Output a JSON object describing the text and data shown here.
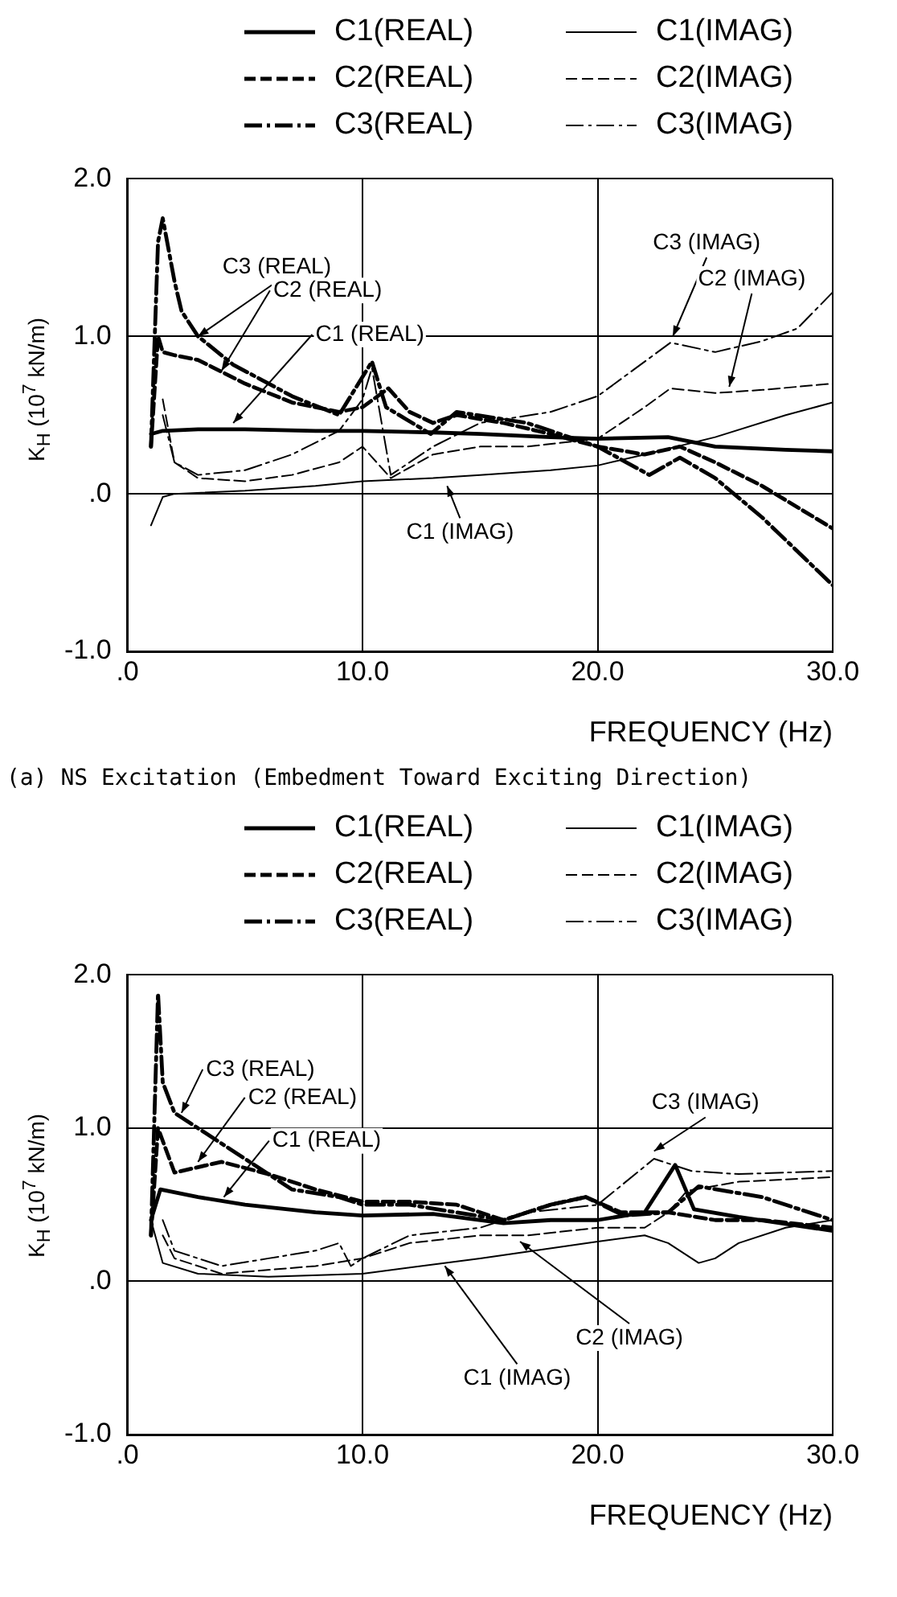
{
  "chart_data": [
    {
      "type": "line",
      "xlabel": "FREQUENCY (Hz)",
      "ylabel": "K$_{H}$ (10$^{7}$ kN/m)",
      "xlim": [
        0,
        30
      ],
      "ylim": [
        -1,
        2
      ],
      "xticks": [
        {
          "value": 0,
          "label": ".0"
        },
        {
          "value": 10,
          "label": "10.0"
        },
        {
          "value": 20,
          "label": "20.0"
        },
        {
          "value": 30,
          "label": "30.0"
        }
      ],
      "yticks": [
        {
          "value": -1,
          "label": "-1.0"
        },
        {
          "value": 0,
          "label": ".0"
        },
        {
          "value": 1,
          "label": "1.0"
        },
        {
          "value": 2,
          "label": "2.0"
        }
      ],
      "grid": true,
      "legend": "top",
      "marker": "none",
      "series": [
        {
          "name": "C1(REAL)",
          "color": "#000000",
          "line_style": "solid",
          "x": [
            1,
            1.5,
            3,
            5,
            8,
            10,
            13,
            15,
            18,
            20,
            23,
            25,
            28,
            30
          ],
          "values": [
            0.38,
            0.4,
            0.41,
            0.41,
            0.4,
            0.4,
            0.39,
            0.38,
            0.36,
            0.35,
            0.36,
            0.3,
            0.28,
            0.27
          ]
        },
        {
          "name": "C1(IMAG)",
          "color": "#000000",
          "line_style": "solid",
          "x": [
            1,
            1.5,
            2,
            5,
            8,
            10,
            13,
            15,
            18,
            20,
            22,
            25,
            28,
            30
          ],
          "values": [
            -0.2,
            -0.02,
            0.0,
            0.02,
            0.05,
            0.08,
            0.1,
            0.12,
            0.15,
            0.18,
            0.25,
            0.36,
            0.5,
            0.58
          ]
        },
        {
          "name": "C2(REAL)",
          "color": "#000000",
          "line_style": "dashed",
          "x": [
            1,
            1.3,
            1.5,
            2,
            3,
            5,
            7,
            9,
            10,
            11.1,
            12,
            13,
            14,
            16,
            18,
            20,
            22,
            23.5,
            25,
            27,
            30
          ],
          "values": [
            0.3,
            1.0,
            0.9,
            0.88,
            0.85,
            0.7,
            0.58,
            0.52,
            0.55,
            0.67,
            0.52,
            0.45,
            0.5,
            0.45,
            0.38,
            0.3,
            0.25,
            0.3,
            0.2,
            0.05,
            -0.22
          ]
        },
        {
          "name": "C2(IMAG)",
          "color": "#000000",
          "line_style": "dashed",
          "x": [
            1.5,
            2,
            3,
            5,
            7,
            9,
            10,
            11.2,
            13,
            15,
            17,
            20,
            22,
            23.1,
            25,
            27,
            30
          ],
          "values": [
            0.6,
            0.2,
            0.1,
            0.08,
            0.12,
            0.2,
            0.3,
            0.1,
            0.25,
            0.3,
            0.3,
            0.35,
            0.55,
            0.67,
            0.64,
            0.66,
            0.7
          ]
        },
        {
          "name": "C3(REAL)",
          "color": "#000000",
          "line_style": "dashdot",
          "x": [
            1,
            1.3,
            1.5,
            2,
            2.3,
            3,
            4.5,
            7,
            9,
            10.4,
            11,
            12.9,
            14,
            17,
            19,
            20,
            22.2,
            23.5,
            25,
            27,
            30
          ],
          "values": [
            0.3,
            1.6,
            1.75,
            1.35,
            1.16,
            1.0,
            0.82,
            0.62,
            0.5,
            0.84,
            0.55,
            0.38,
            0.52,
            0.45,
            0.35,
            0.3,
            0.12,
            0.23,
            0.1,
            -0.15,
            -0.58
          ]
        },
        {
          "name": "C3(IMAG)",
          "color": "#000000",
          "line_style": "dashdot",
          "x": [
            1.5,
            2,
            3,
            5,
            7,
            9,
            10,
            10.4,
            11.2,
            13,
            15,
            18,
            20,
            23.1,
            25,
            27,
            28.5,
            30
          ],
          "values": [
            0.5,
            0.2,
            0.12,
            0.15,
            0.25,
            0.4,
            0.6,
            0.8,
            0.12,
            0.3,
            0.45,
            0.52,
            0.62,
            0.96,
            0.9,
            0.97,
            1.05,
            1.28
          ]
        }
      ],
      "annotations": [
        {
          "text": "C3 (REAL)",
          "x": 3,
          "y": 1.0
        },
        {
          "text": "C2 (REAL)",
          "x": 4,
          "y": 0.78
        },
        {
          "text": "C1 (REAL)",
          "x": 4.5,
          "y": 0.45
        },
        {
          "text": "C1 (IMAG)",
          "x": 13.6,
          "y": 0.05
        },
        {
          "text": "C3 (IMAG)",
          "x": 23.2,
          "y": 1.0
        },
        {
          "text": "C2 (IMAG)",
          "x": 25.6,
          "y": 0.68
        },
        "(a) NS Excitation (Embedment Toward Exciting Direction)"
      ]
    },
    {
      "type": "line",
      "xlabel": "FREQUENCY (Hz)",
      "ylabel": "K$_{H}$ (10$^{7}$ kN/m)",
      "xlim": [
        0,
        30
      ],
      "ylim": [
        -1,
        2
      ],
      "xticks": [
        {
          "value": 0,
          "label": ".0"
        },
        {
          "value": 10,
          "label": "10.0"
        },
        {
          "value": 20,
          "label": "20.0"
        },
        {
          "value": 30,
          "label": "30.0"
        }
      ],
      "yticks": [
        {
          "value": -1,
          "label": "-1.0"
        },
        {
          "value": 0,
          "label": ".0"
        },
        {
          "value": 1,
          "label": "1.0"
        },
        {
          "value": 2,
          "label": "2.0"
        }
      ],
      "grid": true,
      "legend": "top",
      "marker": "none",
      "series": [
        {
          "name": "C1(REAL)",
          "color": "#000000",
          "line_style": "solid",
          "x": [
            1,
            1.4,
            3,
            5,
            8,
            10,
            13,
            16,
            18,
            20,
            22,
            23.3,
            24.1,
            26,
            30
          ],
          "values": [
            0.4,
            0.6,
            0.55,
            0.5,
            0.45,
            0.43,
            0.44,
            0.38,
            0.4,
            0.4,
            0.45,
            0.76,
            0.47,
            0.42,
            0.33
          ]
        },
        {
          "name": "C1(IMAG)",
          "color": "#000000",
          "line_style": "solid",
          "x": [
            1,
            1.5,
            3,
            6,
            10,
            15,
            20,
            22,
            23,
            24.3,
            25,
            26,
            28,
            30
          ],
          "values": [
            0.4,
            0.12,
            0.05,
            0.03,
            0.05,
            0.15,
            0.26,
            0.3,
            0.25,
            0.12,
            0.15,
            0.25,
            0.35,
            0.4
          ]
        },
        {
          "name": "C2(REAL)",
          "color": "#000000",
          "line_style": "dashed",
          "x": [
            1,
            1.3,
            2,
            4,
            6,
            8,
            10,
            12,
            14,
            16,
            18,
            19.5,
            21,
            23,
            25,
            27,
            30
          ],
          "values": [
            0.3,
            1.0,
            0.71,
            0.78,
            0.7,
            0.6,
            0.52,
            0.52,
            0.5,
            0.4,
            0.5,
            0.55,
            0.45,
            0.45,
            0.4,
            0.4,
            0.35
          ]
        },
        {
          "name": "C2(IMAG)",
          "color": "#000000",
          "line_style": "dashed",
          "x": [
            1.5,
            2,
            4,
            8,
            10,
            12,
            15,
            17,
            20,
            22,
            23,
            23.8,
            26,
            30
          ],
          "values": [
            0.3,
            0.15,
            0.05,
            0.1,
            0.15,
            0.25,
            0.3,
            0.3,
            0.35,
            0.35,
            0.45,
            0.59,
            0.65,
            0.68
          ]
        },
        {
          "name": "C3(REAL)",
          "color": "#000000",
          "line_style": "dashdot",
          "x": [
            1,
            1.3,
            1.5,
            2,
            3,
            5,
            7,
            9,
            10,
            12,
            14,
            16,
            18,
            19.5,
            21.1,
            23,
            24.3,
            27,
            30
          ],
          "values": [
            0.3,
            1.88,
            1.3,
            1.1,
            1.0,
            0.8,
            0.6,
            0.55,
            0.5,
            0.5,
            0.45,
            0.4,
            0.5,
            0.55,
            0.43,
            0.45,
            0.62,
            0.55,
            0.4
          ]
        },
        {
          "name": "C3(IMAG)",
          "color": "#000000",
          "line_style": "dashdot",
          "x": [
            1.5,
            2,
            4,
            6,
            8,
            9,
            9.5,
            10,
            12,
            15,
            17,
            20,
            22.4,
            24,
            26,
            30
          ],
          "values": [
            0.4,
            0.2,
            0.1,
            0.15,
            0.2,
            0.25,
            0.1,
            0.15,
            0.3,
            0.35,
            0.45,
            0.5,
            0.8,
            0.72,
            0.7,
            0.72
          ]
        }
      ],
      "annotations": [
        {
          "text": "C3 (REAL)",
          "x": 2.3,
          "y": 1.1
        },
        {
          "text": "C2 (REAL)",
          "x": 3,
          "y": 0.78
        },
        {
          "text": "C1 (REAL)",
          "x": 4.1,
          "y": 0.55
        },
        {
          "text": "C3 (IMAG)",
          "x": 22.4,
          "y": 0.85
        },
        {
          "text": "C2 (IMAG)",
          "x": 16.7,
          "y": 0.26
        },
        {
          "text": "C1 (IMAG)",
          "x": 13.5,
          "y": 0.1
        }
      ]
    }
  ]
}
